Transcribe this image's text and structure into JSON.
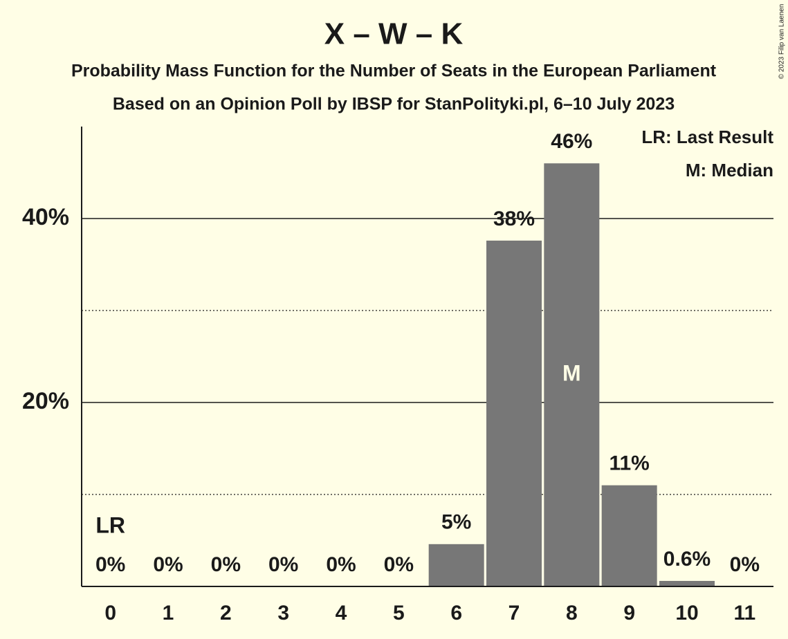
{
  "chart_data": {
    "type": "bar",
    "title": "X – W – K",
    "subtitle": [
      "Probability Mass Function for the Number of Seats in the European Parliament",
      "Based on an Opinion Poll by IBSP for StanPolityki.pl, 6–10 July 2023"
    ],
    "categories": [
      "0",
      "1",
      "2",
      "3",
      "4",
      "5",
      "6",
      "7",
      "8",
      "9",
      "10",
      "11"
    ],
    "values": [
      0,
      0,
      0,
      0,
      0,
      0,
      4.6,
      37.6,
      46,
      11,
      0.6,
      0
    ],
    "value_labels": [
      "0%",
      "0%",
      "0%",
      "0%",
      "0%",
      "0%",
      "5%",
      "38%",
      "46%",
      "11%",
      "0.6%",
      "0%"
    ],
    "color": "#777777",
    "ylim": [
      0,
      50
    ],
    "yticks": [
      {
        "value": 20,
        "label": "20%"
      },
      {
        "value": 40,
        "label": "40%"
      }
    ],
    "minor_yticks": [
      10,
      30
    ],
    "grid": true,
    "annotations": [
      {
        "text": "LR",
        "category": "0"
      },
      {
        "text": "M",
        "category": "8"
      }
    ],
    "legend": [
      "LR: Last Result",
      "M: Median"
    ],
    "legend_position": "top-right",
    "copyright": "© 2023 Filip van Laenen"
  }
}
